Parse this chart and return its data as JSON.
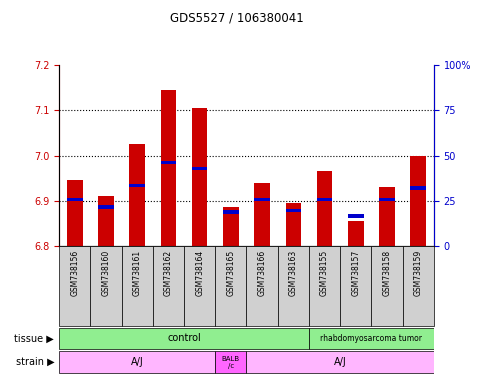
{
  "title": "GDS5527 / 106380041",
  "samples": [
    "GSM738156",
    "GSM738160",
    "GSM738161",
    "GSM738162",
    "GSM738164",
    "GSM738165",
    "GSM738166",
    "GSM738163",
    "GSM738155",
    "GSM738157",
    "GSM738158",
    "GSM738159"
  ],
  "red_values": [
    6.945,
    6.91,
    7.025,
    7.145,
    7.105,
    6.885,
    6.94,
    6.895,
    6.965,
    6.855,
    6.93,
    7.0
  ],
  "blue_values": [
    6.902,
    6.886,
    6.934,
    6.985,
    6.972,
    6.875,
    6.902,
    6.878,
    6.902,
    6.866,
    6.902,
    6.928
  ],
  "ymin": 6.8,
  "ymax": 7.2,
  "yticks": [
    6.8,
    6.9,
    7.0,
    7.1,
    7.2
  ],
  "right_yticks": [
    0,
    25,
    50,
    75,
    100
  ],
  "right_tick_labels": [
    "0",
    "25",
    "50",
    "75",
    "100%"
  ],
  "bar_color": "#CC0000",
  "blue_color": "#0000CC",
  "left_axis_color": "#CC0000",
  "right_axis_color": "#0000CC",
  "bar_width": 0.5,
  "background_color": "#FFFFFF",
  "xticklabel_bg": "#D0D0D0",
  "control_color": "#90EE90",
  "tumor_color": "#90EE90",
  "aj_color": "#FFB6FF",
  "balb_color": "#FF66FF"
}
